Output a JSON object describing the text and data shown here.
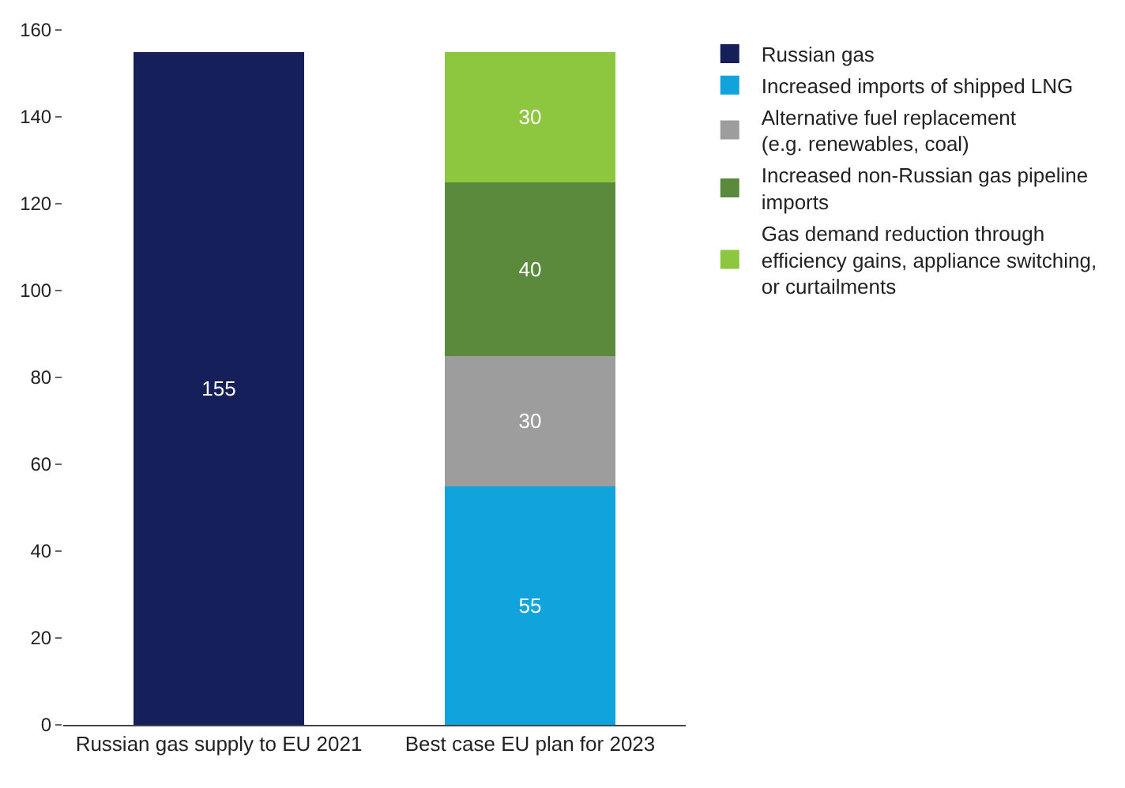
{
  "chart_data": {
    "type": "bar",
    "stacked": true,
    "data_labels": true,
    "legend": "right",
    "categories": [
      "Russian gas supply to EU 2021",
      "Best case EU plan for 2023"
    ],
    "ylim": [
      0,
      160
    ],
    "yticks": [
      0,
      20,
      40,
      60,
      80,
      100,
      120,
      140,
      160
    ],
    "series": [
      {
        "name": "Russian gas",
        "color": "#15205a",
        "values": [
          155,
          null
        ]
      },
      {
        "name": "Increased imports of shipped LNG",
        "color": "#10a3dc",
        "values": [
          null,
          55
        ]
      },
      {
        "name": "Alternative fuel replacement\n(e.g. renewables, coal)",
        "color": "#9d9d9d",
        "values": [
          null,
          30
        ]
      },
      {
        "name": "Increased non-Russian gas pipeline\nimports",
        "color": "#5b8a3c",
        "values": [
          null,
          40
        ]
      },
      {
        "name": "Gas demand reduction through\nefficiency gains, appliance switching,\nor curtailments",
        "color": "#8dc63f",
        "values": [
          null,
          30
        ]
      }
    ]
  }
}
